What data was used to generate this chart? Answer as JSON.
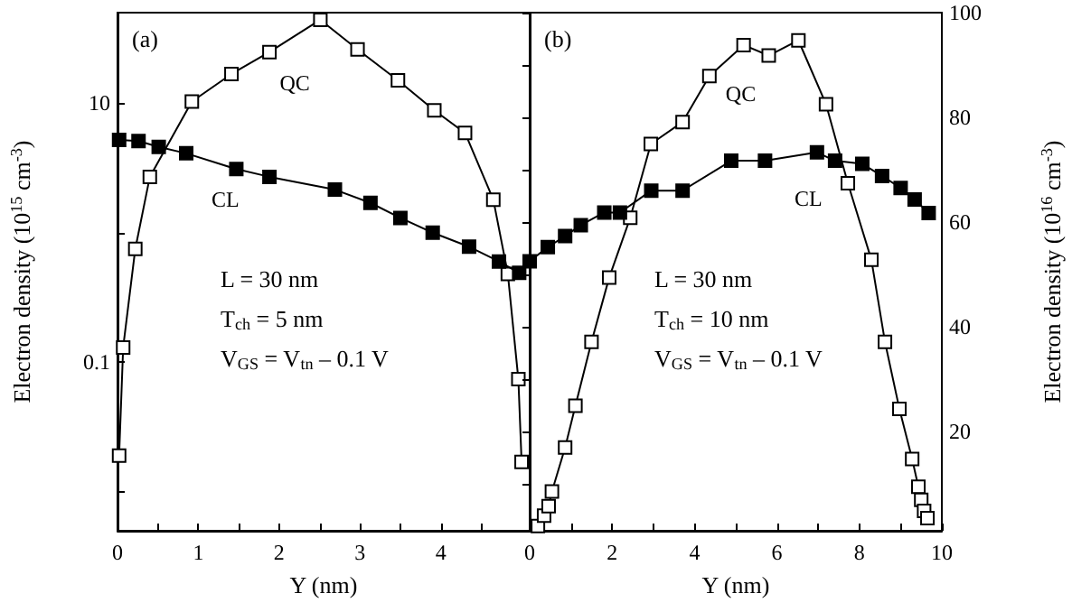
{
  "chart_data": [
    {
      "type": "line",
      "xlabel": "Y (nm)",
      "ylabel": "Electron density (10$^{15}$ cm$^{-3}$)",
      "log": "y",
      "marker": "square",
      "line_style": "solid",
      "grid": false,
      "legend": false,
      "annotations": [
        "(a)",
        "L = 30 nm",
        "T$_{ch}$ = 5 nm",
        "V$_{GS}$ = V$_{tn}$ – 0.1 V"
      ],
      "xlim": [
        0,
        5.1
      ],
      "xticks": [
        0,
        {
          "value": 0.5,
          "label": null
        },
        1,
        {
          "value": 1.5,
          "label": null
        },
        2,
        {
          "value": 2.5,
          "label": null
        },
        3,
        {
          "value": 3.5,
          "label": null
        },
        4,
        {
          "value": 4.5,
          "label": null
        }
      ],
      "ylim": [
        0.005,
        50
      ],
      "yticks": [
        {
          "value": 0.01,
          "label": null
        },
        0.1,
        {
          "value": 1,
          "label": null
        },
        10
      ],
      "series": [
        {
          "name": "QC",
          "color": "#ffffff",
          "x": [
            0.02,
            0.07,
            0.22,
            0.4,
            0.92,
            1.41,
            1.88,
            2.51,
            2.97,
            3.47,
            3.92,
            4.3,
            4.65,
            4.83,
            4.96,
            5.0
          ],
          "values": [
            0.019,
            0.13,
            0.75,
            2.7,
            10.3,
            16.8,
            24.8,
            44,
            26,
            15,
            8.8,
            5.9,
            1.8,
            0.48,
            0.074,
            0.017
          ]
        },
        {
          "name": "CL",
          "color": "#000000",
          "x": [
            0.02,
            0.26,
            0.51,
            0.85,
            1.47,
            1.88,
            2.69,
            3.13,
            3.5,
            3.9,
            4.35,
            4.72,
            4.97
          ],
          "values": [
            5.2,
            5.1,
            4.6,
            4.1,
            3.1,
            2.7,
            2.15,
            1.7,
            1.3,
            1.0,
            0.78,
            0.6,
            0.49
          ]
        }
      ]
    },
    {
      "type": "line",
      "xlabel": "Y (nm)",
      "y2label": "Electron density (10$^{16}$ cm$^{-3}$)",
      "marker": "square",
      "line_style": "solid",
      "grid": false,
      "legend": false,
      "annotations": [
        "(b)",
        "L = 30 nm",
        "T$_{ch}$ = 10 nm",
        "V$_{GS}$ = V$_{tn}$ – 0.1 V"
      ],
      "xlim": [
        0,
        10
      ],
      "xticks": [
        0,
        {
          "value": 1,
          "label": null
        },
        2,
        {
          "value": 3,
          "label": null
        },
        4,
        {
          "value": 5,
          "label": null
        },
        6,
        {
          "value": 7,
          "label": null
        },
        8,
        {
          "value": 9,
          "label": null
        },
        10
      ],
      "y2lim": [
        1,
        100
      ],
      "y2ticks": [
        {
          "value": 10,
          "label": null
        },
        20,
        {
          "value": 30,
          "label": null
        },
        40,
        {
          "value": 50,
          "label": null
        },
        60,
        {
          "value": 70,
          "label": null
        },
        80,
        {
          "value": 90,
          "label": null
        },
        100
      ],
      "series": [
        {
          "name": "QC",
          "color": "#ffffff",
          "axis": "y2",
          "x": [
            0.2,
            0.35,
            0.46,
            0.54,
            0.86,
            1.11,
            1.5,
            1.93,
            2.44,
            2.94,
            3.71,
            4.36,
            5.19,
            5.8,
            6.52,
            7.19,
            7.72,
            8.29,
            8.62,
            8.97,
            9.28,
            9.43,
            9.5,
            9.57,
            9.65
          ],
          "values": [
            1.9,
            3.9,
            5.7,
            8.5,
            16.9,
            24.9,
            37.1,
            49.4,
            60.8,
            74.9,
            79.1,
            87.9,
            93.8,
            91.8,
            94.7,
            82.5,
            67.4,
            52.8,
            37.1,
            24.3,
            14.7,
            9.4,
            6.9,
            4.8,
            3.4
          ]
        },
        {
          "name": "CL",
          "color": "#000000",
          "axis": "y2",
          "x": [
            0,
            0.44,
            0.86,
            1.24,
            1.81,
            2.19,
            2.95,
            3.71,
            4.89,
            5.71,
            6.97,
            7.41,
            8.07,
            8.55,
            9.0,
            9.34,
            9.68
          ],
          "values": [
            52.5,
            55.2,
            57.3,
            59.4,
            61.8,
            61.8,
            66,
            66,
            71.7,
            71.7,
            73.3,
            71.7,
            71.1,
            68.8,
            66.5,
            64.3,
            61.7
          ]
        }
      ]
    }
  ]
}
